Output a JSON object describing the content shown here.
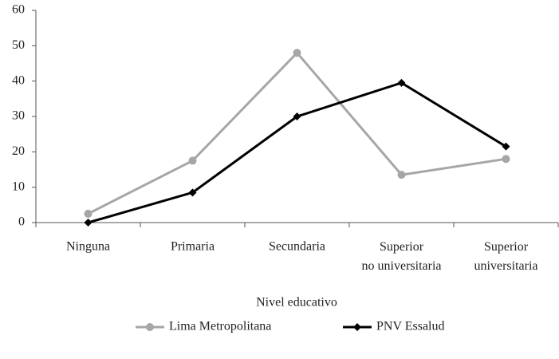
{
  "chart_data": {
    "type": "line",
    "x_label": "Nivel educativo",
    "categories": [
      "Ninguna",
      "Primaria",
      "Secundaria",
      "Superior no universitaria",
      "Superior universitaria"
    ],
    "series": [
      {
        "name": "Lima Metropolitana",
        "color": "#a6a6a6",
        "marker": "circle",
        "values": [
          2.5,
          17.5,
          48,
          13.5,
          18
        ]
      },
      {
        "name": "PNV Essalud",
        "color": "#000000",
        "marker": "diamond",
        "values": [
          0,
          8.5,
          30,
          39.5,
          21.5
        ]
      }
    ],
    "ylim": [
      0,
      60
    ],
    "yticks": [
      0,
      10,
      20,
      30,
      40,
      50,
      60
    ],
    "grid": false,
    "legend": "bottom"
  }
}
